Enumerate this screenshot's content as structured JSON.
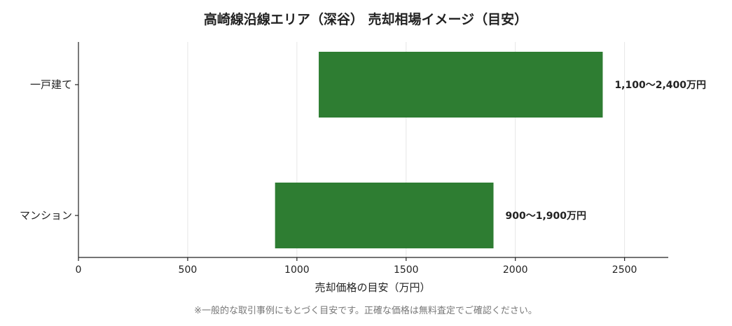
{
  "chart_data": {
    "type": "bar",
    "orientation": "horizontal",
    "title": "高崎線沿線エリア（深谷） 売却相場イメージ（目安）",
    "xlabel": "売却価格の目安（万円）",
    "ylabel": "",
    "xlim": [
      0,
      2700
    ],
    "x_ticks": [
      0,
      500,
      1000,
      1500,
      2000,
      2500
    ],
    "x_tick_labels": [
      "0",
      "500",
      "1000",
      "1500",
      "2000",
      "2500"
    ],
    "grid": "vertical",
    "bar_color": "#2e7d32",
    "categories": [
      "一戸建て",
      "マンション"
    ],
    "ranges": [
      {
        "category": "一戸建て",
        "low": 1100,
        "high": 2400,
        "label": "1,100〜2,400万円"
      },
      {
        "category": "マンション",
        "low": 900,
        "high": 1900,
        "label": "900〜1,900万円"
      }
    ],
    "footnote": "※一般的な取引事例にもとづく目安です。正確な価格は無料査定でご確認ください。"
  }
}
